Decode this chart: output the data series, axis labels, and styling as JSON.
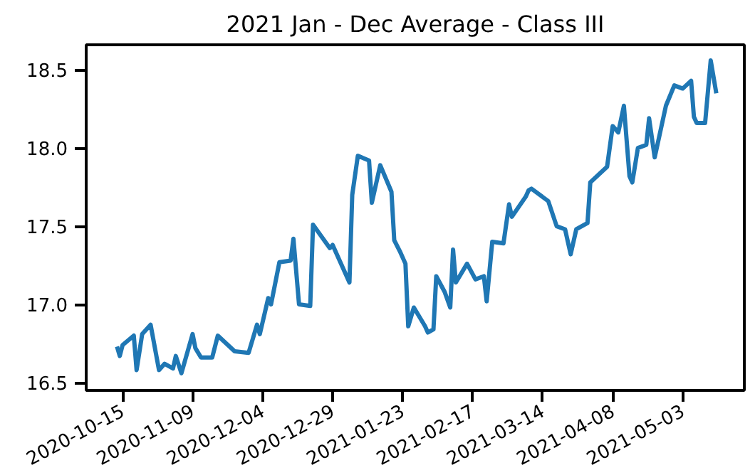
{
  "chart_data": {
    "type": "line",
    "title": "2021 Jan - Dec Average - Class III",
    "x": [
      "2020-10-13",
      "2020-10-14",
      "2020-10-15",
      "2020-10-19",
      "2020-10-20",
      "2020-10-22",
      "2020-10-25",
      "2020-10-28",
      "2020-10-30",
      "2020-11-02",
      "2020-11-03",
      "2020-11-05",
      "2020-11-09",
      "2020-11-10",
      "2020-11-12",
      "2020-11-16",
      "2020-11-18",
      "2020-11-24",
      "2020-11-29",
      "2020-12-02",
      "2020-12-03",
      "2020-12-06",
      "2020-12-07",
      "2020-12-10",
      "2020-12-14",
      "2020-12-15",
      "2020-12-17",
      "2020-12-21",
      "2020-12-22",
      "2020-12-28",
      "2020-12-29",
      "2021-01-04",
      "2021-01-05",
      "2021-01-07",
      "2021-01-11",
      "2021-01-12",
      "2021-01-15",
      "2021-01-19",
      "2021-01-20",
      "2021-01-22",
      "2021-01-24",
      "2021-01-25",
      "2021-01-27",
      "2021-01-31",
      "2021-02-01",
      "2021-02-03",
      "2021-02-04",
      "2021-02-07",
      "2021-02-09",
      "2021-02-10",
      "2021-02-11",
      "2021-02-15",
      "2021-02-18",
      "2021-02-21",
      "2021-02-22",
      "2021-02-24",
      "2021-02-28",
      "2021-03-02",
      "2021-03-03",
      "2021-03-08",
      "2021-03-09",
      "2021-03-10",
      "2021-03-16",
      "2021-03-19",
      "2021-03-22",
      "2021-03-24",
      "2021-03-26",
      "2021-03-30",
      "2021-03-31",
      "2021-04-06",
      "2021-04-08",
      "2021-04-10",
      "2021-04-12",
      "2021-04-14",
      "2021-04-15",
      "2021-04-17",
      "2021-04-20",
      "2021-04-21",
      "2021-04-23",
      "2021-04-27",
      "2021-04-30",
      "2021-05-03",
      "2021-05-06",
      "2021-05-07",
      "2021-05-08",
      "2021-05-11",
      "2021-05-13",
      "2021-05-15"
    ],
    "series": [
      {
        "color": "#1f77b4",
        "values": [
          16.73,
          16.67,
          16.74,
          16.8,
          16.58,
          16.81,
          16.87,
          16.58,
          16.62,
          16.59,
          16.67,
          16.56,
          16.81,
          16.72,
          16.66,
          16.66,
          16.8,
          16.7,
          16.69,
          16.87,
          16.81,
          17.04,
          17.0,
          17.27,
          17.28,
          17.42,
          17.0,
          16.99,
          17.51,
          17.36,
          17.38,
          17.14,
          17.7,
          17.95,
          17.92,
          17.65,
          17.89,
          17.72,
          17.41,
          17.34,
          17.26,
          16.86,
          16.98,
          16.86,
          16.82,
          16.84,
          17.18,
          17.08,
          16.98,
          17.35,
          17.14,
          17.26,
          17.16,
          17.18,
          17.02,
          17.4,
          17.39,
          17.64,
          17.56,
          17.69,
          17.73,
          17.74,
          17.66,
          17.5,
          17.48,
          17.32,
          17.48,
          17.52,
          17.78,
          17.88,
          18.14,
          18.1,
          18.27,
          17.82,
          17.78,
          18.0,
          18.02,
          18.19,
          17.94,
          18.27,
          18.4,
          18.38,
          18.43,
          18.2,
          18.16,
          18.16,
          18.56,
          18.35
        ]
      }
    ],
    "xlim": [
      "2020-10-02",
      "2021-05-25"
    ],
    "xticks": [
      "2020-10-15",
      "2020-11-09",
      "2020-12-04",
      "2020-12-29",
      "2021-01-23",
      "2021-02-17",
      "2021-03-14",
      "2021-04-08",
      "2021-05-03"
    ],
    "ylim": [
      16.45,
      18.66
    ],
    "yticks": [
      16.5,
      {
        "value": 17.0,
        "label": "17.0"
      },
      17.5,
      {
        "value": 18.0,
        "label": "18.0"
      },
      18.5
    ],
    "grid": false,
    "line_style": "solid"
  }
}
